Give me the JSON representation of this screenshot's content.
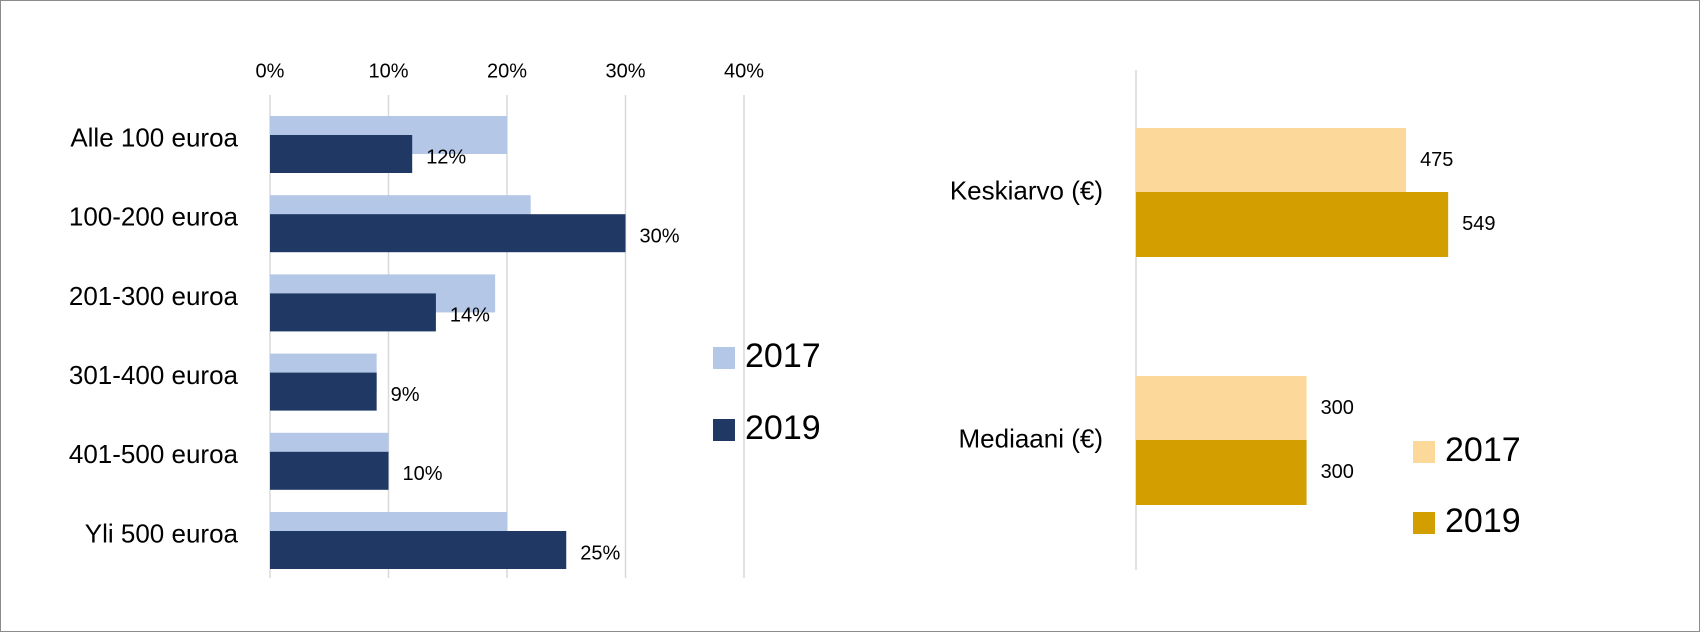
{
  "chart_data": [
    {
      "type": "bar",
      "orientation": "horizontal",
      "categories": [
        "Alle 100 euroa",
        "100-200 euroa",
        "201-300 euroa",
        "301-400 euroa",
        "401-500 euroa",
        "Yli 500 euroa"
      ],
      "series": [
        {
          "name": "2017",
          "color": "#b4c7e7",
          "values": [
            20,
            22,
            19,
            9,
            10,
            20
          ]
        },
        {
          "name": "2019",
          "color": "#1f3864",
          "values": [
            12,
            30,
            14,
            9,
            10,
            25
          ],
          "value_labels": [
            "12%",
            "30%",
            "14%",
            "9%",
            "10%",
            "25%"
          ]
        }
      ],
      "xlim": [
        0,
        40
      ],
      "xticks": [
        {
          "value": 0,
          "label": "0%"
        },
        {
          "value": 10,
          "label": "10%"
        },
        {
          "value": 20,
          "label": "20%"
        },
        {
          "value": 30,
          "label": "30%"
        },
        {
          "value": 40,
          "label": "40%"
        }
      ],
      "grid": true
    },
    {
      "type": "bar",
      "orientation": "horizontal",
      "categories": [
        "Keskiarvo (€)",
        "Mediaani (€)"
      ],
      "series": [
        {
          "name": "2017",
          "color": "#fdd89b",
          "values": [
            475,
            300
          ]
        },
        {
          "name": "2019",
          "color": "#d39e00",
          "values": [
            549,
            300
          ]
        }
      ],
      "xlim": [
        0,
        700
      ],
      "grid": false
    }
  ]
}
